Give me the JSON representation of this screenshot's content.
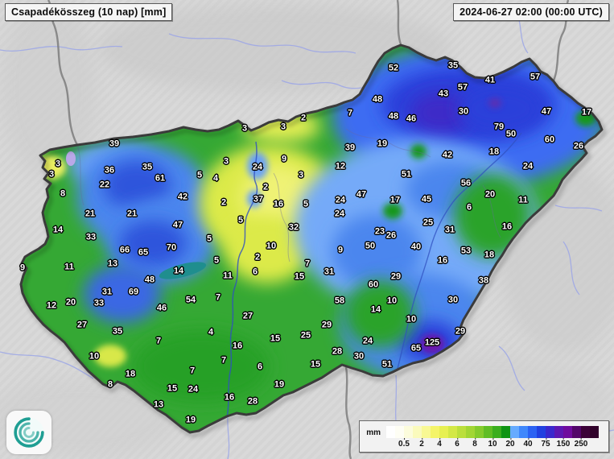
{
  "header": {
    "title": "Csapadékösszeg (10 nap) [mm]",
    "timestamp": "2024-06-27 02:00 (00:00 UTC)"
  },
  "legend": {
    "unit": "mm",
    "ticks": [
      "0.5",
      "2",
      "4",
      "6",
      "8",
      "10",
      "20",
      "40",
      "75",
      "150",
      "250"
    ],
    "colors": [
      "#ffffff",
      "#fefef4",
      "#fcfcdc",
      "#fafabc",
      "#f8f894",
      "#f4f468",
      "#e7f052",
      "#d3e846",
      "#bbdf3c",
      "#a2d634",
      "#84cb2c",
      "#5fbd24",
      "#3aae1e",
      "#0f9414",
      "#66abff",
      "#4088fc",
      "#2b62f3",
      "#2140e0",
      "#3a28cd",
      "#5d17b2",
      "#6f0b9e",
      "#53066a",
      "#3c0338",
      "#31022a"
    ]
  },
  "map_data": {
    "type": "station-value-map",
    "region": "Hungary",
    "station_fields": [
      "value_mm",
      "x",
      "y"
    ],
    "stations": [
      [
        52,
        489,
        85
      ],
      [
        35,
        563,
        82
      ],
      [
        57,
        665,
        96
      ],
      [
        41,
        609,
        100
      ],
      [
        57,
        575,
        109
      ],
      [
        43,
        551,
        117
      ],
      [
        48,
        469,
        124
      ],
      [
        30,
        576,
        139
      ],
      [
        47,
        679,
        139
      ],
      [
        17,
        729,
        140
      ],
      [
        7,
        435,
        141
      ],
      [
        48,
        489,
        145
      ],
      [
        46,
        511,
        148
      ],
      [
        2,
        377,
        147
      ],
      [
        3,
        352,
        158
      ],
      [
        3,
        304,
        160
      ],
      [
        79,
        620,
        158
      ],
      [
        50,
        635,
        167
      ],
      [
        60,
        683,
        174
      ],
      [
        26,
        719,
        182
      ],
      [
        39,
        142,
        179
      ],
      [
        19,
        475,
        179
      ],
      [
        39,
        435,
        184
      ],
      [
        18,
        614,
        189
      ],
      [
        42,
        556,
        193
      ],
      [
        9,
        353,
        198
      ],
      [
        3,
        281,
        201
      ],
      [
        3,
        72,
        204
      ],
      [
        35,
        183,
        208
      ],
      [
        24,
        320,
        208
      ],
      [
        12,
        423,
        207
      ],
      [
        24,
        656,
        207
      ],
      [
        36,
        136,
        212
      ],
      [
        3,
        64,
        217
      ],
      [
        3,
        374,
        218
      ],
      [
        5,
        248,
        218
      ],
      [
        51,
        505,
        217
      ],
      [
        61,
        199,
        222
      ],
      [
        4,
        268,
        222
      ],
      [
        56,
        579,
        228
      ],
      [
        22,
        130,
        230
      ],
      [
        2,
        330,
        233
      ],
      [
        47,
        449,
        242
      ],
      [
        20,
        609,
        242
      ],
      [
        8,
        78,
        241
      ],
      [
        42,
        227,
        245
      ],
      [
        37,
        321,
        248
      ],
      [
        24,
        423,
        249
      ],
      [
        17,
        491,
        249
      ],
      [
        11,
        650,
        249
      ],
      [
        45,
        530,
        248
      ],
      [
        2,
        278,
        252
      ],
      [
        16,
        346,
        254
      ],
      [
        5,
        380,
        254
      ],
      [
        6,
        583,
        258
      ],
      [
        21,
        112,
        266
      ],
      [
        21,
        164,
        266
      ],
      [
        24,
        422,
        266
      ],
      [
        5,
        299,
        274
      ],
      [
        25,
        532,
        277
      ],
      [
        47,
        221,
        280
      ],
      [
        14,
        72,
        286
      ],
      [
        23,
        472,
        288
      ],
      [
        26,
        486,
        293
      ],
      [
        31,
        559,
        286
      ],
      [
        16,
        630,
        282
      ],
      [
        32,
        365,
        283
      ],
      [
        5,
        260,
        297
      ],
      [
        33,
        113,
        295
      ],
      [
        66,
        155,
        311
      ],
      [
        65,
        178,
        314
      ],
      [
        70,
        213,
        308
      ],
      [
        10,
        337,
        306
      ],
      [
        50,
        460,
        306
      ],
      [
        40,
        517,
        307
      ],
      [
        9,
        423,
        311
      ],
      [
        2,
        320,
        320
      ],
      [
        53,
        579,
        312
      ],
      [
        18,
        608,
        317
      ],
      [
        5,
        269,
        324
      ],
      [
        16,
        550,
        324
      ],
      [
        9,
        28,
        333
      ],
      [
        11,
        86,
        332
      ],
      [
        13,
        140,
        328
      ],
      [
        7,
        382,
        328
      ],
      [
        14,
        222,
        337
      ],
      [
        11,
        283,
        343
      ],
      [
        6,
        317,
        338
      ],
      [
        15,
        372,
        344
      ],
      [
        31,
        409,
        338
      ],
      [
        48,
        186,
        348
      ],
      [
        38,
        601,
        349
      ],
      [
        29,
        492,
        344
      ],
      [
        60,
        464,
        354
      ],
      [
        31,
        133,
        363
      ],
      [
        69,
        166,
        363
      ],
      [
        7,
        271,
        370
      ],
      [
        30,
        563,
        373
      ],
      [
        10,
        487,
        374
      ],
      [
        54,
        237,
        373
      ],
      [
        33,
        123,
        377
      ],
      [
        20,
        88,
        376
      ],
      [
        12,
        64,
        380
      ],
      [
        58,
        422,
        374
      ],
      [
        14,
        467,
        385
      ],
      [
        46,
        201,
        383
      ],
      [
        10,
        511,
        397
      ],
      [
        27,
        102,
        404
      ],
      [
        27,
        308,
        393
      ],
      [
        29,
        406,
        404
      ],
      [
        29,
        572,
        412
      ],
      [
        35,
        146,
        412
      ],
      [
        4,
        262,
        413
      ],
      [
        25,
        380,
        417
      ],
      [
        125,
        537,
        426
      ],
      [
        65,
        517,
        433
      ],
      [
        15,
        342,
        421
      ],
      [
        24,
        457,
        424
      ],
      [
        28,
        419,
        437
      ],
      [
        30,
        446,
        443
      ],
      [
        7,
        197,
        424
      ],
      [
        16,
        295,
        430
      ],
      [
        10,
        117,
        443
      ],
      [
        7,
        278,
        448
      ],
      [
        6,
        323,
        456
      ],
      [
        15,
        392,
        453
      ],
      [
        51,
        481,
        453
      ],
      [
        7,
        239,
        461
      ],
      [
        18,
        162,
        465
      ],
      [
        8,
        137,
        478
      ],
      [
        19,
        347,
        478
      ],
      [
        15,
        214,
        483
      ],
      [
        24,
        240,
        484
      ],
      [
        16,
        285,
        494
      ],
      [
        28,
        314,
        499
      ],
      [
        13,
        197,
        503
      ],
      [
        19,
        237,
        522
      ]
    ]
  }
}
